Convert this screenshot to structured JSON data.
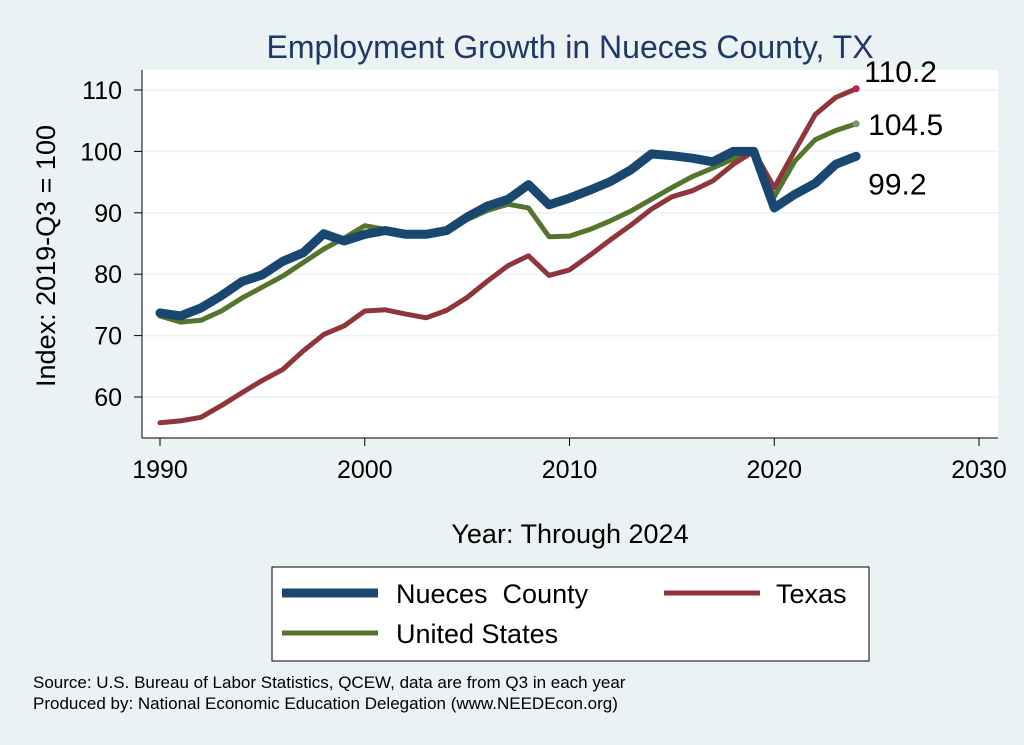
{
  "chart_data": {
    "type": "line",
    "title": "Employment Growth in Nueces County, TX",
    "xlabel": "Year: Through 2024",
    "ylabel": "Index: 2019-Q3 = 100",
    "xlim": [
      1990,
      2030
    ],
    "ylim": [
      55,
      113
    ],
    "xticks": [
      1990,
      2000,
      2010,
      2020,
      2030
    ],
    "yticks": [
      60,
      70,
      80,
      90,
      100,
      110
    ],
    "grid": true,
    "legend_position": "bottom",
    "x": [
      1990,
      1991,
      1992,
      1993,
      1994,
      1995,
      1996,
      1997,
      1998,
      1999,
      2000,
      2001,
      2002,
      2003,
      2004,
      2005,
      2006,
      2007,
      2008,
      2009,
      2010,
      2011,
      2012,
      2013,
      2014,
      2015,
      2016,
      2017,
      2018,
      2019,
      2020,
      2021,
      2022,
      2023,
      2024
    ],
    "series": [
      {
        "name": "Nueces  County",
        "color": "#1a476f",
        "width": "thick",
        "end_label": "99.2",
        "values": [
          73.7,
          73.2,
          74.5,
          76.5,
          78.8,
          79.9,
          82.1,
          83.5,
          86.6,
          85.4,
          86.5,
          87.1,
          86.5,
          86.5,
          87.1,
          89.3,
          91.1,
          92.2,
          94.6,
          91.3,
          92.4,
          93.7,
          95.1,
          97.0,
          99.6,
          99.3,
          98.9,
          98.3,
          100.0,
          100.0,
          90.8,
          93.0,
          94.8,
          97.9,
          99.2
        ]
      },
      {
        "name": "Texas",
        "color": "#90353b",
        "width": "medium",
        "end_label": "110.2",
        "values": [
          55.8,
          56.1,
          56.7,
          58.6,
          60.7,
          62.7,
          64.5,
          67.5,
          70.2,
          71.6,
          74.0,
          74.2,
          73.5,
          72.9,
          74.1,
          76.2,
          78.9,
          81.4,
          83.0,
          79.8,
          80.7,
          83.1,
          85.6,
          88.0,
          90.6,
          92.6,
          93.6,
          95.2,
          97.9,
          100.0,
          94.1,
          100.1,
          106.0,
          108.8,
          110.2
        ]
      },
      {
        "name": "United States",
        "color": "#55752f",
        "width": "medium",
        "end_label": "104.5",
        "values": [
          73.2,
          72.2,
          72.5,
          74.0,
          76.1,
          77.9,
          79.7,
          81.9,
          84.1,
          85.9,
          87.9,
          87.3,
          86.5,
          86.3,
          87.2,
          88.9,
          90.4,
          91.4,
          90.8,
          86.1,
          86.2,
          87.3,
          88.7,
          90.3,
          92.2,
          94.1,
          95.9,
          97.3,
          98.8,
          100.0,
          92.6,
          98.4,
          101.9,
          103.4,
          104.5
        ]
      }
    ],
    "source_lines": [
      "Source: U.S. Bureau of Labor Statistics, QCEW, data are from Q3 in each year",
      "Produced by: National Economic Education Delegation (www.NEEDEcon.org)"
    ]
  }
}
